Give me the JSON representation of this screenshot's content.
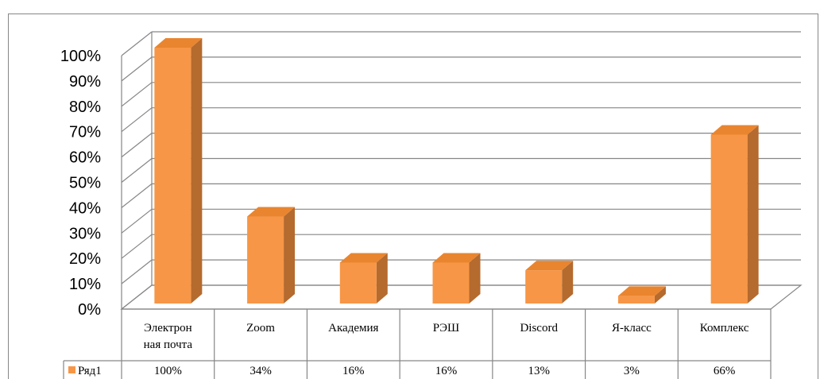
{
  "chart_data": {
    "type": "bar",
    "style": "3d-column",
    "categories": [
      [
        "Электрон",
        "ная почта"
      ],
      [
        "Zoom"
      ],
      [
        "Академия"
      ],
      [
        "РЭШ"
      ],
      [
        "Discord"
      ],
      [
        "Я-класс"
      ],
      [
        "Комплекс"
      ]
    ],
    "series": [
      {
        "name": "Ряд1",
        "values": [
          100,
          34,
          16,
          16,
          13,
          3,
          66
        ],
        "value_labels": [
          "100%",
          "34%",
          "16%",
          "16%",
          "13%",
          "3%",
          "66%"
        ],
        "color": "#f79646",
        "side_color": "#b56a2e",
        "top_color": "#e9852f"
      }
    ],
    "yticks": [
      "0%",
      "10%",
      "20%",
      "30%",
      "40%",
      "50%",
      "60%",
      "70%",
      "80%",
      "90%",
      "100%"
    ],
    "ylim": [
      0,
      100
    ],
    "grid": true,
    "legend": "data-table",
    "gridline_color": "#868686"
  }
}
